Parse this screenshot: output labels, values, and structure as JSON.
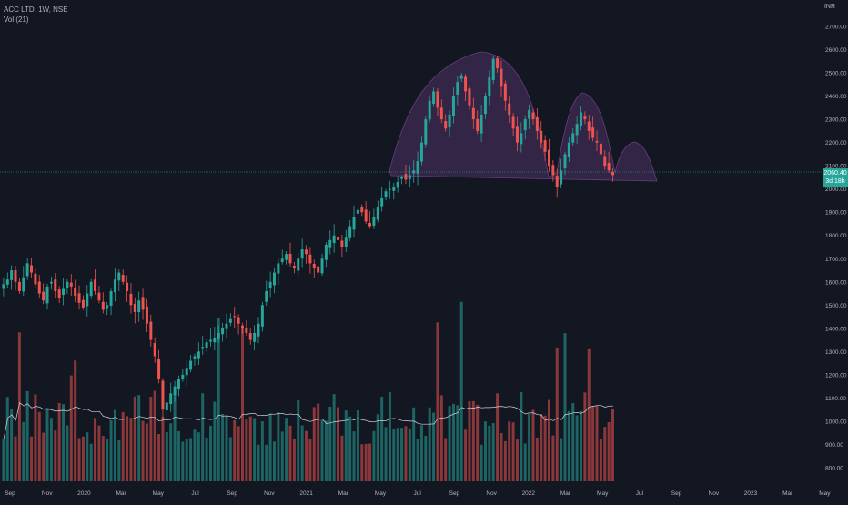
{
  "legend": {
    "symbol": "ACC LTD, 1W, NSE",
    "volume": "Vol (21)"
  },
  "currency": "INR",
  "last_price": {
    "price": "2060.40",
    "countdown": "3d 18h"
  },
  "colors": {
    "up": "#26a69a",
    "down": "#ef5350",
    "pattern": "#6a3c7d",
    "ma": "#d1d4dc"
  },
  "chart_data": {
    "type": "candlestick",
    "title": "",
    "xlabel": "",
    "ylabel": "",
    "ylim": [
      760,
      2760
    ],
    "grid": false,
    "y_ticks": [
      "2700.00",
      "2600.00",
      "2500.00",
      "2400.00",
      "2300.00",
      "2200.00",
      "2100.00",
      "2000.00",
      "1900.00",
      "1800.00",
      "1700.00",
      "1600.00",
      "1500.00",
      "1400.00",
      "1300.00",
      "1200.00",
      "1100.00",
      "1000.00",
      "900.00",
      "800.00"
    ],
    "x_ticks": [
      "Sep",
      "Nov",
      "2020",
      "Mar",
      "May",
      "Jul",
      "Sep",
      "Nov",
      "2021",
      "Mar",
      "May",
      "Jul",
      "Sep",
      "Nov",
      "2022",
      "Mar",
      "May",
      "Jul",
      "Sep",
      "Nov",
      "2023",
      "Mar",
      "May"
    ],
    "closes": [
      1590,
      1610,
      1650,
      1600,
      1560,
      1620,
      1680,
      1640,
      1590,
      1550,
      1520,
      1580,
      1600,
      1560,
      1530,
      1570,
      1600,
      1580,
      1540,
      1510,
      1490,
      1550,
      1600,
      1560,
      1520,
      1480,
      1500,
      1560,
      1610,
      1640,
      1600,
      1560,
      1500,
      1470,
      1520,
      1480,
      1420,
      1350,
      1280,
      1180,
      1050,
      1080,
      1120,
      1150,
      1180,
      1200,
      1230,
      1260,
      1280,
      1300,
      1320,
      1340,
      1350,
      1360,
      1380,
      1400,
      1420,
      1440,
      1450,
      1420,
      1400,
      1380,
      1350,
      1380,
      1420,
      1500,
      1560,
      1600,
      1640,
      1680,
      1700,
      1720,
      1680,
      1660,
      1700,
      1740,
      1720,
      1680,
      1660,
      1640,
      1700,
      1760,
      1780,
      1800,
      1780,
      1750,
      1790,
      1840,
      1880,
      1910,
      1900,
      1860,
      1840,
      1880,
      1920,
      1960,
      1990,
      2000,
      2010,
      2030,
      2050,
      2040,
      2060,
      2080,
      2120,
      2200,
      2300,
      2380,
      2420,
      2350,
      2300,
      2260,
      2320,
      2400,
      2460,
      2490,
      2420,
      2360,
      2300,
      2250,
      2320,
      2400,
      2480,
      2560,
      2520,
      2440,
      2380,
      2320,
      2260,
      2200,
      2240,
      2300,
      2340,
      2300,
      2250,
      2200,
      2160,
      2100,
      2060,
      2010,
      2080,
      2150,
      2200,
      2240,
      2280,
      2330,
      2300,
      2250,
      2220,
      2200,
      2150,
      2100,
      2080,
      2060
    ],
    "vol_scale_note": "",
    "pattern": [
      "head-and-shoulders"
    ]
  }
}
